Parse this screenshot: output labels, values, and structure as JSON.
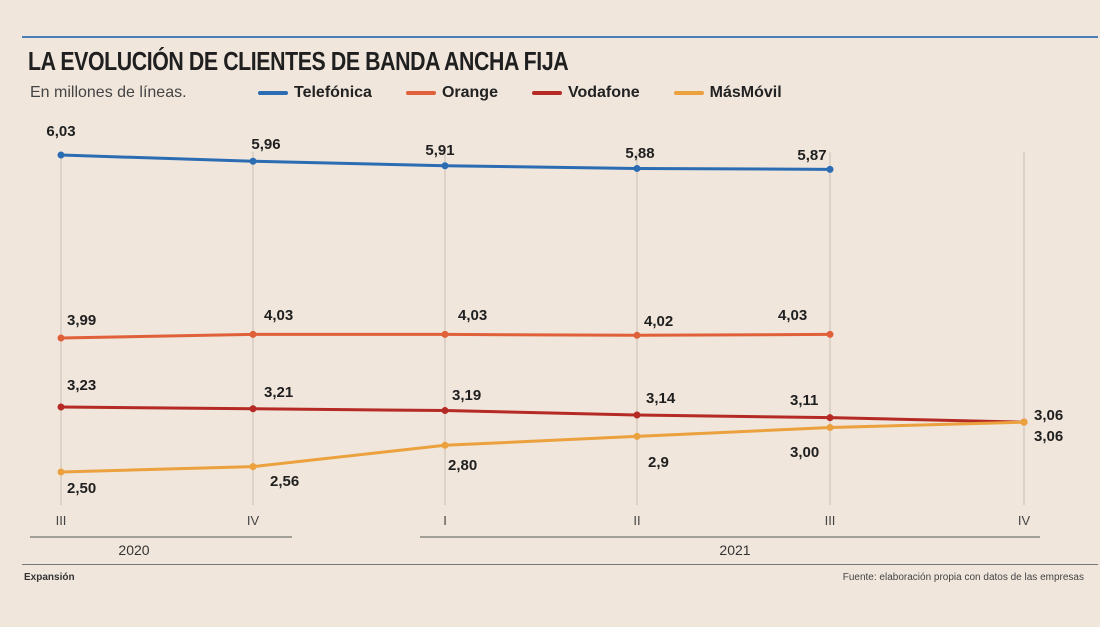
{
  "header": {
    "title": "LA EVOLUCIÓN DE CLIENTES DE BANDA ANCHA FIJA",
    "subtitle": "En millones de líneas."
  },
  "footer": {
    "publisher": "Expansión",
    "source": "Fuente: elaboración propia con datos de las empresas"
  },
  "chart_data": {
    "type": "line",
    "title": "LA EVOLUCIÓN DE CLIENTES DE BANDA ANCHA FIJA",
    "ylabel": "En millones de líneas.",
    "xlabel": "",
    "categories": [
      "III",
      "IV",
      "I",
      "II",
      "III",
      "IV"
    ],
    "years": [
      {
        "label": "2020",
        "from": 0,
        "to": 1
      },
      {
        "label": "2021",
        "from": 2,
        "to": 5
      }
    ],
    "legend_position": "top",
    "grid": false,
    "series": [
      {
        "name": "Telefónica",
        "color": "#2b6cb3",
        "values": [
          6.03,
          5.96,
          5.91,
          5.88,
          5.87,
          null
        ],
        "labels": [
          "6,03",
          "5,96",
          "5,91",
          "5,88",
          "5,87",
          ""
        ]
      },
      {
        "name": "Orange",
        "color": "#e0603a",
        "values": [
          3.99,
          4.03,
          4.03,
          4.02,
          4.03,
          null
        ],
        "labels": [
          "3,99",
          "4,03",
          "4,03",
          "4,02",
          "4,03",
          ""
        ]
      },
      {
        "name": "Vodafone",
        "color": "#b52a24",
        "values": [
          3.23,
          3.21,
          3.19,
          3.14,
          3.11,
          3.06
        ],
        "labels": [
          "3,23",
          "3,21",
          "3,19",
          "3,14",
          "3,11",
          "3,06"
        ]
      },
      {
        "name": "MásMóvil",
        "color": "#eba13e",
        "values": [
          2.5,
          2.56,
          2.8,
          2.9,
          3.0,
          3.06
        ],
        "labels": [
          "2,50",
          "2,56",
          "2,80",
          "2,9",
          "3,00",
          "3,06"
        ]
      }
    ]
  }
}
